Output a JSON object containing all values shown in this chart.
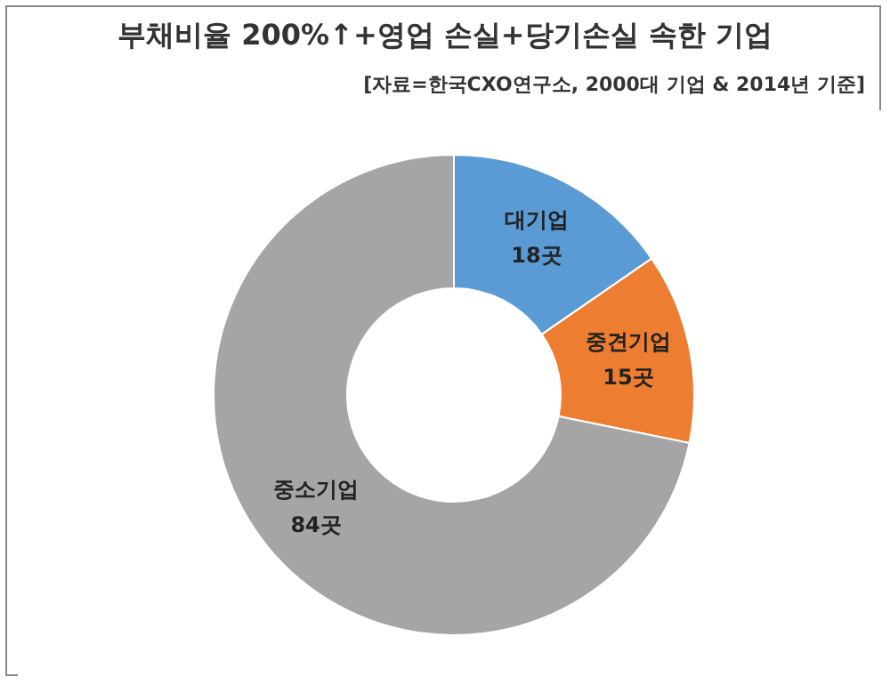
{
  "chart_data": {
    "type": "donut",
    "title": "부채비율 200%↑+영업 손실+당기손실 속한 기업",
    "subtitle": "[자료=한국CXO연구소, 2000대 기업 & 2014년 기준]",
    "categories": [
      "대기업",
      "중견기업",
      "중소기업"
    ],
    "values": [
      18,
      15,
      84
    ],
    "value_labels": [
      "18곳",
      "15곳",
      "84곳"
    ],
    "colors": [
      "#5b9bd5",
      "#ed7d31",
      "#a5a5a5"
    ]
  }
}
